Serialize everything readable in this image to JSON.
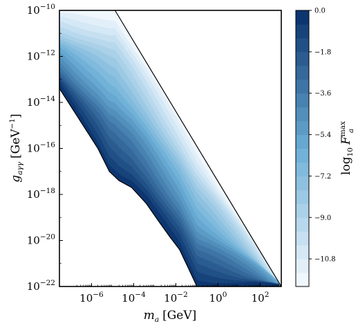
{
  "chart_data": {
    "type": "heatmap",
    "subtype": "filled-contour",
    "title": "",
    "xlabel": {
      "symbol": "m",
      "sub": "a",
      "unit": "[GeV]"
    },
    "ylabel": {
      "symbol": "g",
      "sub": "aγγ",
      "unit": "[GeV",
      "unit_sup": "−1",
      "unit_close": "]"
    },
    "x_scale": "log",
    "y_scale": "log",
    "xlim": [
      3e-08,
      1000
    ],
    "ylim": [
      1e-22,
      1e-10
    ],
    "x_ticks": [
      {
        "value": 1e-06,
        "base": "10",
        "exp": "−6"
      },
      {
        "value": 0.0001,
        "base": "10",
        "exp": "−4"
      },
      {
        "value": 0.01,
        "base": "10",
        "exp": "−2"
      },
      {
        "value": 1,
        "base": "10",
        "exp": "0"
      },
      {
        "value": 100,
        "base": "10",
        "exp": "2"
      }
    ],
    "y_ticks": [
      {
        "value": 1e-22,
        "base": "10",
        "exp": "−22"
      },
      {
        "value": 1e-20,
        "base": "10",
        "exp": "−20"
      },
      {
        "value": 1e-18,
        "base": "10",
        "exp": "−18"
      },
      {
        "value": 1e-16,
        "base": "10",
        "exp": "−16"
      },
      {
        "value": 1e-14,
        "base": "10",
        "exp": "−14"
      },
      {
        "value": 1e-12,
        "base": "10",
        "exp": "−12"
      },
      {
        "value": 1e-10,
        "base": "10",
        "exp": "−10"
      }
    ],
    "colorbar": {
      "label": {
        "prefix": "log",
        "sub": "10",
        "symbol": "F",
        "sup": "max",
        "sub2": "a"
      },
      "range": [
        -12.0,
        0.0
      ],
      "ticks": [
        {
          "value": 0.0,
          "label": "0.0"
        },
        {
          "value": -1.8,
          "label": "−1.8"
        },
        {
          "value": -3.6,
          "label": "−3.6"
        },
        {
          "value": -5.4,
          "label": "−5.4"
        },
        {
          "value": -7.2,
          "label": "−7.2"
        },
        {
          "value": -9.0,
          "label": "−9.0"
        },
        {
          "value": -10.8,
          "label": "−10.8"
        }
      ],
      "colormap": "Blues",
      "levels": 20,
      "color_low": "#f7fbff",
      "color_high": "#08306b"
    },
    "region_boundaries": {
      "upper_edge": [
        [
          1.3e-05,
          1e-10
        ],
        [
          1000,
          1e-22
        ]
      ],
      "lower_edge": [
        [
          3e-08,
          4e-14
        ],
        [
          4e-07,
          1e-15
        ],
        [
          2e-06,
          1e-16
        ],
        [
          7e-06,
          1e-17
        ],
        [
          2e-05,
          4e-18
        ],
        [
          8e-05,
          2e-18
        ],
        [
          0.0004,
          4e-19
        ],
        [
          0.0015,
          7e-20
        ],
        [
          0.005,
          1.5e-20
        ],
        [
          0.015,
          4e-21
        ],
        [
          0.04,
          6e-22
        ],
        [
          0.1,
          1e-22
        ]
      ]
    }
  }
}
